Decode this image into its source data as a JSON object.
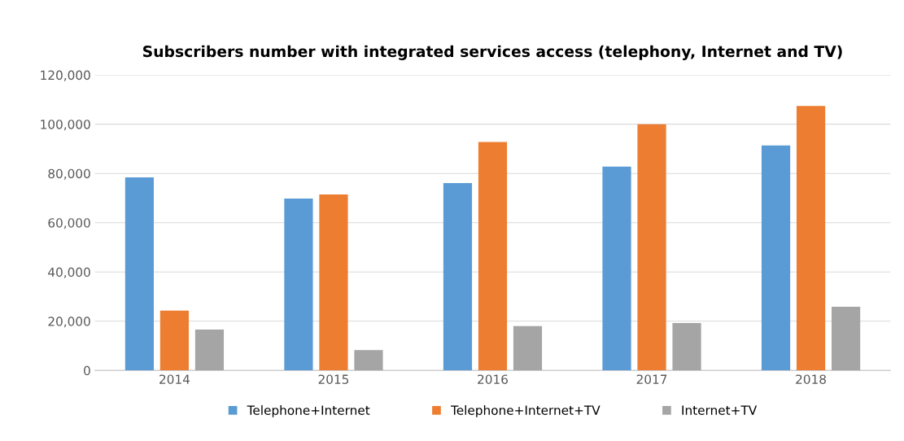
{
  "chart_data": {
    "type": "bar",
    "title": "Subscribers number with integrated services access (telephony, Internet and TV)",
    "categories": [
      "2014",
      "2015",
      "2016",
      "2017",
      "2018"
    ],
    "series": [
      {
        "name": "Telephone+Internet",
        "color": "#5b9bd5",
        "values": [
          78400,
          69800,
          76100,
          82800,
          91400
        ]
      },
      {
        "name": "Telephone+Internet+TV",
        "color": "#ed7d31",
        "values": [
          24300,
          71500,
          92800,
          100000,
          107400
        ]
      },
      {
        "name": "Internet+TV",
        "color": "#a5a5a5",
        "values": [
          16600,
          8300,
          18000,
          19300,
          25900
        ]
      }
    ],
    "ylim": [
      0,
      120000
    ],
    "yticks": [
      {
        "value": 0,
        "label": "0"
      },
      {
        "value": 20000,
        "label": "20,000"
      },
      {
        "value": 40000,
        "label": "40,000"
      },
      {
        "value": 60000,
        "label": "60,000"
      },
      {
        "value": 80000,
        "label": "80,000"
      },
      {
        "value": 100000,
        "label": "100,000"
      },
      {
        "value": 120000,
        "label": "120,000"
      }
    ],
    "grid": "y",
    "legend": "bottom"
  }
}
